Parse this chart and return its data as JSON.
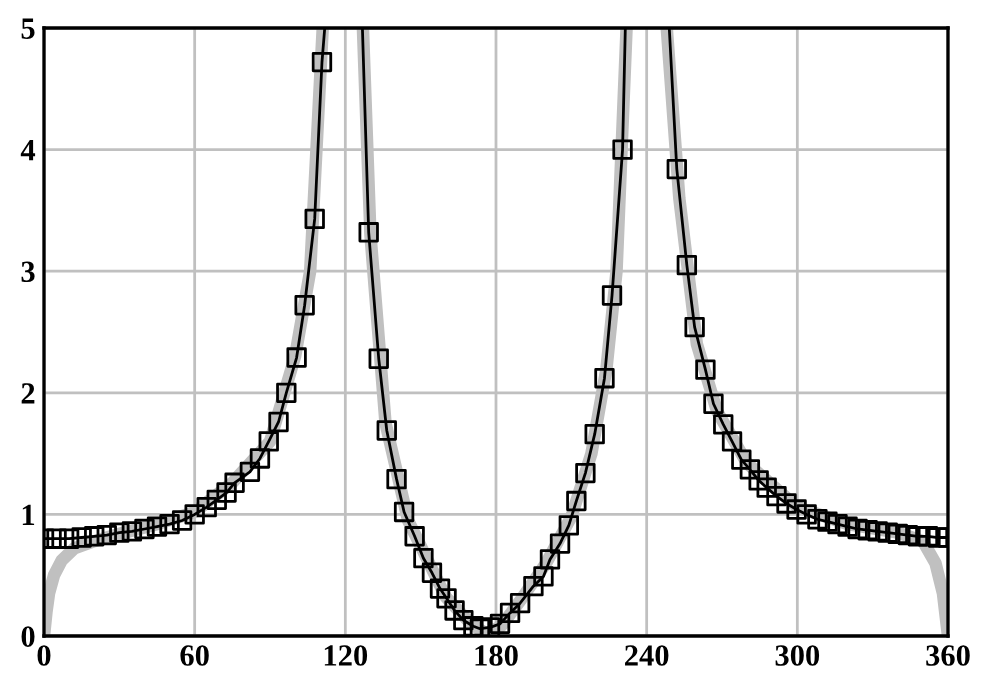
{
  "chart_data": {
    "type": "line",
    "xlim": [
      0,
      360
    ],
    "ylim": [
      0,
      5
    ],
    "xticks": [
      0,
      60,
      120,
      180,
      240,
      300,
      360
    ],
    "yticks": [
      0,
      1,
      2,
      3,
      4,
      5
    ],
    "grid": true,
    "series": [
      {
        "color": "#c0c0c0",
        "line_style": "solid",
        "marker": "none",
        "x": [
          0,
          1,
          2,
          4,
          7,
          12,
          20,
          30,
          45,
          60,
          75,
          90,
          100,
          106,
          111,
          111.5,
          127,
          130,
          136,
          145,
          160,
          170,
          176,
          182,
          190,
          200,
          210,
          218,
          224,
          228,
          232,
          232.5,
          248,
          253,
          260,
          268,
          280,
          300,
          320,
          340,
          350,
          355,
          358,
          360
        ],
        "values": [
          0,
          0.2,
          0.35,
          0.5,
          0.62,
          0.72,
          0.78,
          0.84,
          0.92,
          1.02,
          1.26,
          1.6,
          2.3,
          3.0,
          5.0,
          null,
          5.0,
          3.3,
          1.75,
          0.95,
          0.32,
          0.1,
          0.02,
          0.08,
          0.3,
          0.6,
          0.98,
          1.5,
          2.2,
          3.0,
          5.0,
          null,
          5.0,
          3.6,
          2.4,
          1.85,
          1.42,
          1.06,
          0.92,
          0.85,
          0.78,
          0.6,
          0.35,
          0
        ]
      },
      {
        "color": "#000000",
        "line_style": "solid",
        "marker": "none",
        "x": [
          0,
          5,
          10,
          15,
          20,
          25,
          30,
          35,
          40,
          45,
          50,
          55,
          60,
          64.8,
          68.8,
          72.7,
          75.9,
          82,
          86,
          89.5,
          93.4,
          96.5,
          100.6,
          103.8,
          107.8,
          110.7,
          111.8,
          112,
          126.8,
          129.3,
          133.3,
          136.5,
          140.4,
          143.4,
          147.6,
          151.1,
          154.5,
          157.7,
          160.3,
          163.5,
          167,
          171,
          173.6,
          177.6,
          181.6,
          185.6,
          189.6,
          194.9,
          198.9,
          201.5,
          205.5,
          209,
          212,
          215.6,
          219.3,
          223.2,
          226.2,
          230.4,
          231.5,
          232,
          249,
          252,
          256,
          259.1,
          263.4,
          266.6,
          270.5,
          274,
          277.7,
          281.1,
          284.6,
          287.8,
          291.7,
          295.7,
          299.7,
          303.7,
          308,
          312,
          316,
          320,
          324,
          328,
          332,
          336,
          340,
          344,
          348,
          352,
          356,
          360
        ],
        "values": [
          0.8,
          0.8,
          0.8,
          0.81,
          0.82,
          0.83,
          0.85,
          0.86,
          0.88,
          0.9,
          0.92,
          0.95,
          1.0,
          1.06,
          1.12,
          1.18,
          1.26,
          1.35,
          1.46,
          1.6,
          1.76,
          2.0,
          2.29,
          2.72,
          3.43,
          4.72,
          5.0,
          null,
          5.0,
          3.32,
          2.28,
          1.69,
          1.29,
          1.02,
          0.82,
          0.64,
          0.52,
          0.39,
          0.31,
          0.21,
          0.13,
          0.08,
          0.06,
          0.07,
          0.1,
          0.19,
          0.27,
          0.41,
          0.49,
          0.63,
          0.76,
          0.91,
          1.11,
          1.34,
          1.66,
          2.12,
          2.8,
          4.0,
          5.0,
          null,
          5.0,
          3.84,
          3.05,
          2.54,
          2.19,
          1.91,
          1.74,
          1.6,
          1.45,
          1.37,
          1.28,
          1.22,
          1.15,
          1.09,
          1.04,
          1.0,
          0.96,
          0.94,
          0.92,
          0.9,
          0.88,
          0.87,
          0.86,
          0.85,
          0.84,
          0.83,
          0.82,
          0.82,
          0.81,
          0.81
        ]
      },
      {
        "type": "scatter",
        "color": "#000000",
        "marker": "square",
        "x": [
          0,
          5,
          10,
          15,
          20,
          25,
          30,
          35,
          40,
          45,
          50,
          55,
          60,
          64.8,
          68.8,
          72.7,
          75.9,
          82,
          86,
          89.5,
          93.4,
          96.5,
          100.6,
          103.8,
          107.8,
          110.7,
          129.3,
          133.3,
          136.5,
          140.4,
          143.4,
          147.6,
          151.1,
          154.5,
          157.7,
          160.3,
          163.5,
          167,
          171,
          173.6,
          177.6,
          181.6,
          185.6,
          189.6,
          194.9,
          198.9,
          201.5,
          205.5,
          209,
          212,
          215.6,
          219.3,
          223.2,
          226.2,
          230.4,
          252,
          256,
          259.1,
          263.4,
          266.6,
          270.5,
          274,
          277.7,
          281.1,
          284.6,
          287.8,
          291.7,
          295.7,
          299.7,
          303.7,
          308,
          312,
          316,
          320,
          324,
          328,
          332,
          336,
          340,
          344,
          348,
          352,
          356,
          360
        ],
        "values": [
          0.8,
          0.8,
          0.8,
          0.81,
          0.82,
          0.83,
          0.85,
          0.86,
          0.88,
          0.9,
          0.92,
          0.95,
          1.0,
          1.06,
          1.12,
          1.18,
          1.26,
          1.35,
          1.46,
          1.6,
          1.76,
          2.0,
          2.29,
          2.72,
          3.43,
          4.72,
          3.32,
          2.28,
          1.69,
          1.29,
          1.02,
          0.82,
          0.64,
          0.52,
          0.39,
          0.31,
          0.21,
          0.13,
          0.08,
          0.06,
          0.07,
          0.1,
          0.19,
          0.27,
          0.41,
          0.49,
          0.63,
          0.76,
          0.91,
          1.11,
          1.34,
          1.66,
          2.12,
          2.8,
          4.0,
          3.84,
          3.05,
          2.54,
          2.19,
          1.91,
          1.74,
          1.6,
          1.45,
          1.37,
          1.28,
          1.22,
          1.15,
          1.09,
          1.04,
          1.0,
          0.96,
          0.94,
          0.92,
          0.9,
          0.88,
          0.87,
          0.86,
          0.85,
          0.84,
          0.83,
          0.82,
          0.82,
          0.81,
          0.81
        ]
      }
    ]
  }
}
